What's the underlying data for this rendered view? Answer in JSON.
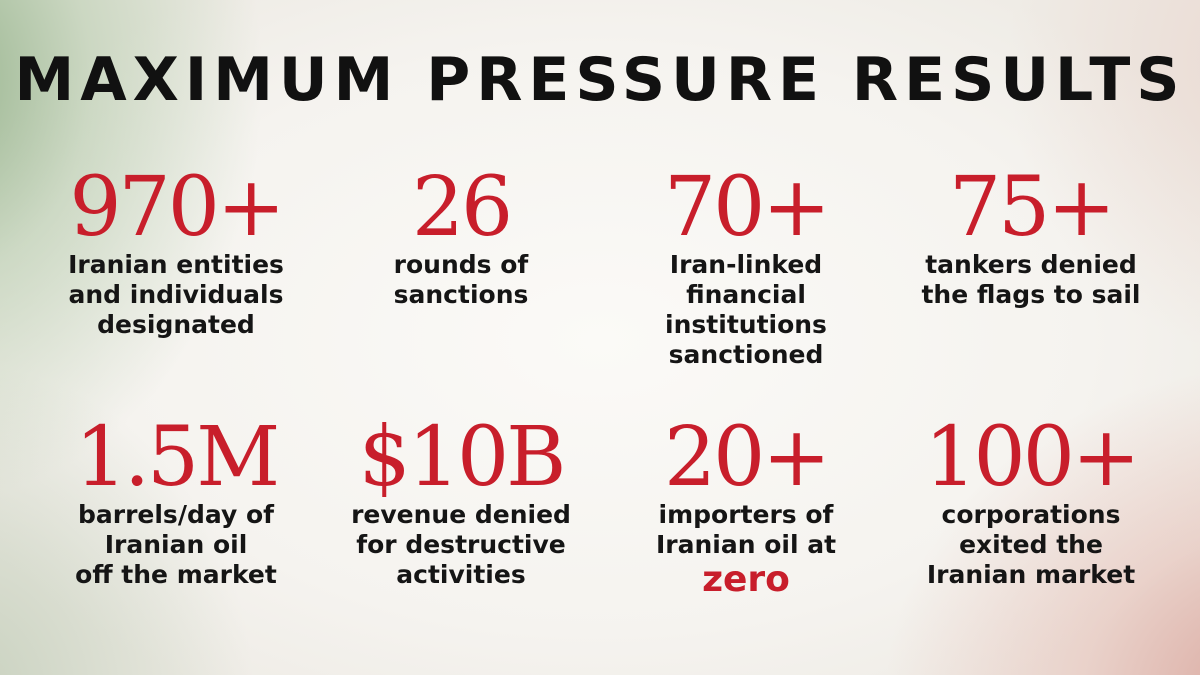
{
  "title": "MAXIMUM PRESSURE RESULTS",
  "colors": {
    "number": "#c81e2b",
    "text": "#151515",
    "title": "#111111"
  },
  "stats": [
    {
      "value": "970+",
      "lines": [
        "Iranian entities",
        "and individuals",
        "designated"
      ]
    },
    {
      "value": "26",
      "lines": [
        "rounds of",
        "sanctions"
      ]
    },
    {
      "value": "70+",
      "lines": [
        "Iran-linked",
        "financial",
        "institutions",
        "sanctioned"
      ]
    },
    {
      "value": "75+",
      "lines": [
        "tankers denied",
        "the flags to sail"
      ]
    },
    {
      "value": "1.5M",
      "lines": [
        "barrels/day of",
        "Iranian oil",
        "off the market"
      ]
    },
    {
      "value": "$10B",
      "lines": [
        "revenue denied",
        "for destructive",
        "activities"
      ]
    },
    {
      "value": "20+",
      "lines": [
        "importers of",
        "Iranian oil at"
      ],
      "emphasis": "zero"
    },
    {
      "value": "100+",
      "lines": [
        "corporations",
        "exited the",
        "Iranian market"
      ]
    }
  ]
}
